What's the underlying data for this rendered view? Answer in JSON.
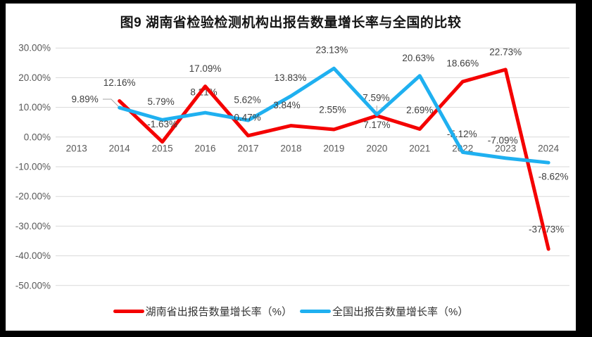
{
  "title": "图9 湖南省检验检测机构出报告数量增长率与全国的比较",
  "colors": {
    "hunan_line": "#F40000",
    "national_line": "#1FB0F0",
    "gridline": "#D9D9D9",
    "axis_text": "#595959",
    "data_label_text": "#404040",
    "leader_line": "#A6A6A6",
    "panel_background": "#FFFFFF",
    "frame_background": "#000000",
    "title_text": "#141414"
  },
  "chart_data": {
    "type": "line",
    "title": "图9 湖南省检验检测机构出报告数量增长率与全国的比较",
    "categories": [
      "2013",
      "2014",
      "2015",
      "2016",
      "2017",
      "2018",
      "2019",
      "2020",
      "2021",
      "2022",
      "2023",
      "2024"
    ],
    "y_ticks": [
      "30.00%",
      "20.00%",
      "10.00%",
      "0.00%",
      "-10.00%",
      "-20.00%",
      "-30.00%",
      "-40.00%",
      "-50.00%"
    ],
    "ylim": [
      -50,
      30
    ],
    "y_step": 10,
    "grid": true,
    "legend_position": "bottom",
    "xlabel": "",
    "ylabel": "",
    "series": [
      {
        "name": "湖南省出报告数量增长率（%）",
        "color": "#F40000",
        "x": [
          "2014",
          "2015",
          "2016",
          "2017",
          "2018",
          "2019",
          "2020",
          "2021",
          "2022",
          "2023",
          "2024"
        ],
        "values": [
          12.16,
          -1.63,
          17.09,
          0.47,
          3.84,
          2.55,
          7.17,
          2.69,
          18.66,
          22.73,
          -37.73
        ],
        "labels": [
          "12.16%",
          "-1.63%",
          "17.09%",
          "0.47%",
          "3.84%",
          "2.55%",
          "7.17%",
          "2.69%",
          "18.66%",
          "22.73%",
          "-37.73%"
        ]
      },
      {
        "name": "全国出报告数量增长率（%）",
        "color": "#1FB0F0",
        "x": [
          "2014",
          "2015",
          "2016",
          "2017",
          "2018",
          "2019",
          "2020",
          "2021",
          "2022",
          "2023",
          "2024"
        ],
        "values": [
          9.89,
          5.79,
          8.21,
          5.62,
          13.83,
          23.13,
          7.59,
          20.63,
          -5.12,
          -7.09,
          -8.62
        ],
        "labels": [
          "9.89%",
          "5.79%",
          "8.21%",
          "5.62%",
          "13.83%",
          "23.13%",
          "7.59%",
          "20.63%",
          "-5.12%",
          "-7.09%",
          "-8.62%"
        ]
      }
    ]
  }
}
